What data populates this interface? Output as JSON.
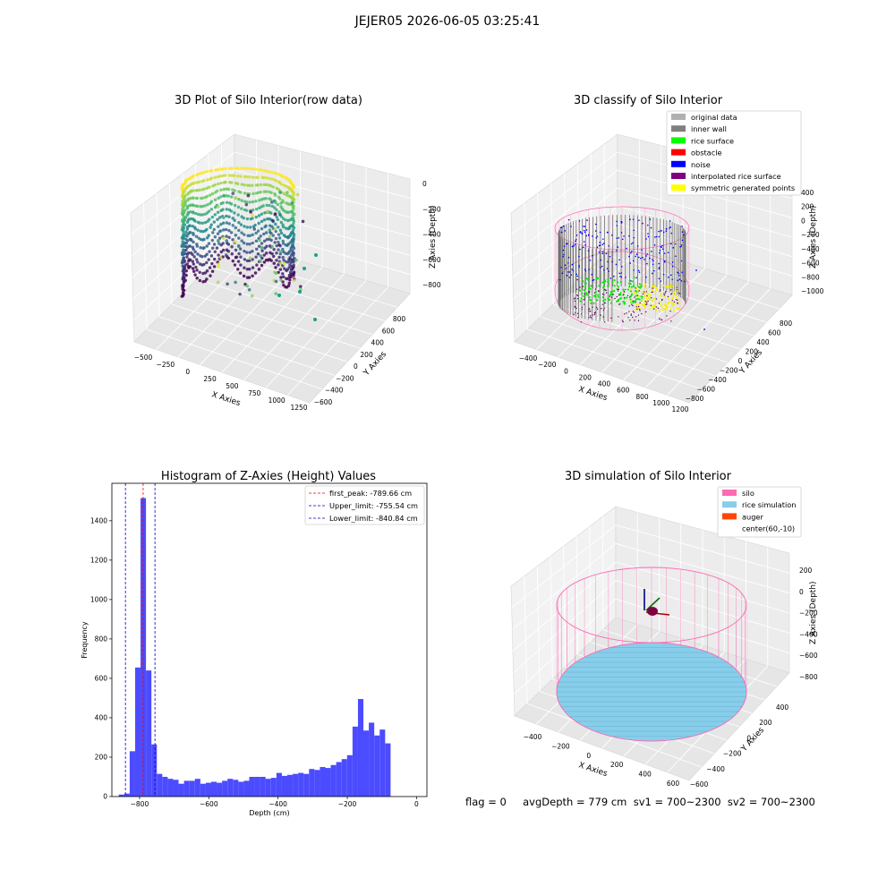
{
  "suptitle": "JEJER05 2026-06-05 03:25:41",
  "footer": "flag = 0     avgDepth = 779 cm  sv1 = 700~2300  sv2 = 700~2300",
  "colors": {
    "hist_bar": "#4b4bff",
    "first_peak_line": "#ff0000",
    "limit_line": "#0000cc",
    "silo_wire": "#ff69b4",
    "rice_fill": "#87ceeb",
    "auger": "#ff4500"
  },
  "panels": {
    "raw": {
      "title": "3D Plot of Silo Interior(row data)",
      "xlabel": "X Axies",
      "ylabel": "Y Axies",
      "zlabel": "Z Axies (Depth)",
      "xticks": [
        "−500",
        "−250",
        "0",
        "250",
        "500",
        "750",
        "1000",
        "1250"
      ],
      "yticks": [
        "−600",
        "−400",
        "−200",
        "0",
        "200",
        "400",
        "600",
        "800"
      ],
      "zticks": [
        "0",
        "−200",
        "−400",
        "−600",
        "−800"
      ]
    },
    "classify": {
      "title": "3D classify of Silo Interior",
      "xlabel": "X Axies",
      "ylabel": "Y Axies",
      "zlabel": "Z Axies (Depth)",
      "xticks": [
        "−400",
        "−200",
        "0",
        "200",
        "400",
        "600",
        "800",
        "1000",
        "1200"
      ],
      "yticks": [
        "−800",
        "−600",
        "−400",
        "−200",
        "0",
        "200",
        "400",
        "600",
        "800"
      ],
      "zticks": [
        "400",
        "200",
        "0",
        "−200",
        "−400",
        "−600",
        "−800",
        "−1000"
      ],
      "legend": [
        {
          "label": "original data",
          "color": "#b0b0b0"
        },
        {
          "label": "inner wall",
          "color": "#808080"
        },
        {
          "label": "rice surface",
          "color": "#00ff00"
        },
        {
          "label": "obstacle",
          "color": "#ff0000"
        },
        {
          "label": "noise",
          "color": "#0000ff"
        },
        {
          "label": "interpolated rice surface",
          "color": "#800080"
        },
        {
          "label": "symmetric generated points",
          "color": "#ffff00"
        }
      ]
    },
    "simulation": {
      "title": "3D simulation of Silo Interior",
      "xlabel": "X Axies",
      "ylabel": "Y Axies",
      "zlabel": "Z Axies (Depth)",
      "xticks": [
        "−400",
        "−200",
        "0",
        "200",
        "400",
        "600"
      ],
      "yticks": [
        "−600",
        "−400",
        "−200",
        "0",
        "200",
        "400"
      ],
      "zticks": [
        "200",
        "0",
        "−200",
        "−400",
        "−600",
        "−800"
      ],
      "legend": [
        {
          "label": "silo",
          "color": "#ff69b4"
        },
        {
          "label": "rice simulation",
          "color": "#87ceeb"
        },
        {
          "label": "auger",
          "color": "#ff4500"
        },
        {
          "label": "center(60,-10)",
          "color": ""
        }
      ]
    }
  },
  "chart_data": {
    "type": "bar",
    "title": "Histogram of Z-Axies (Height) Values",
    "xlabel": "Depth (cm)",
    "ylabel": "Frequency",
    "xlim": [
      -880,
      30
    ],
    "ylim": [
      0,
      1590
    ],
    "xticks": [
      -800,
      -600,
      -400,
      -200,
      0
    ],
    "yticks": [
      0,
      200,
      400,
      600,
      800,
      1000,
      1200,
      1400
    ],
    "bin_start": -860,
    "bin_width": 15.7,
    "values": [
      10,
      15,
      230,
      655,
      1515,
      640,
      265,
      115,
      100,
      90,
      85,
      65,
      80,
      80,
      90,
      65,
      70,
      75,
      70,
      80,
      90,
      85,
      75,
      80,
      100,
      100,
      100,
      90,
      95,
      120,
      105,
      110,
      115,
      120,
      115,
      140,
      135,
      150,
      145,
      160,
      175,
      190,
      210,
      355,
      495,
      335,
      375,
      310,
      340,
      270
    ],
    "vlines": [
      {
        "label": "first_peak: -789.66 cm",
        "x": -789.66,
        "color": "#ff0000"
      },
      {
        "label": "Upper_limit: -755.54 cm",
        "x": -755.54,
        "color": "#0000cc"
      },
      {
        "label": "Lower_limit: -840.84 cm",
        "x": -840.84,
        "color": "#0000cc"
      }
    ],
    "legend_position": "upper right",
    "grid": false
  }
}
